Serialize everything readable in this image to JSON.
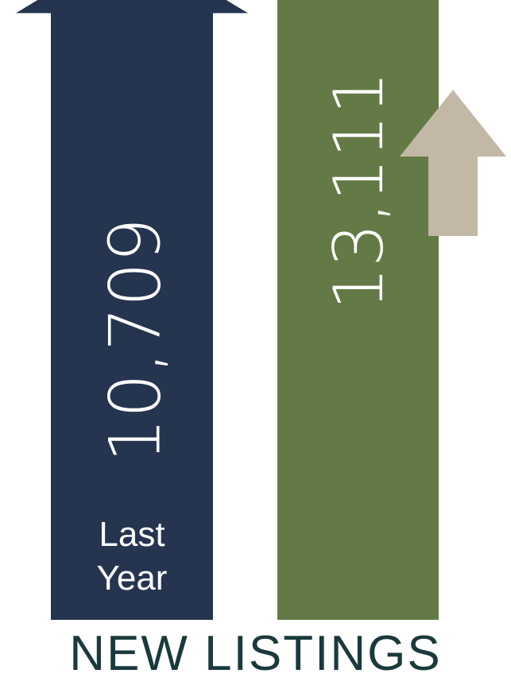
{
  "chart_data": {
    "type": "bar",
    "title": "NEW LISTINGS",
    "series": [
      {
        "values": [
          10709,
          13111
        ]
      }
    ],
    "data_labels": [
      "10,709",
      "13,111"
    ],
    "category_labels": [
      "Last Year",
      ""
    ],
    "trend_indicator": "up-arrow",
    "colors": {
      "last_year_bar": "#253550",
      "current_bar": "#647a46",
      "trend_arrow": "#c3b8a5",
      "title": "#1a3a3c"
    }
  }
}
